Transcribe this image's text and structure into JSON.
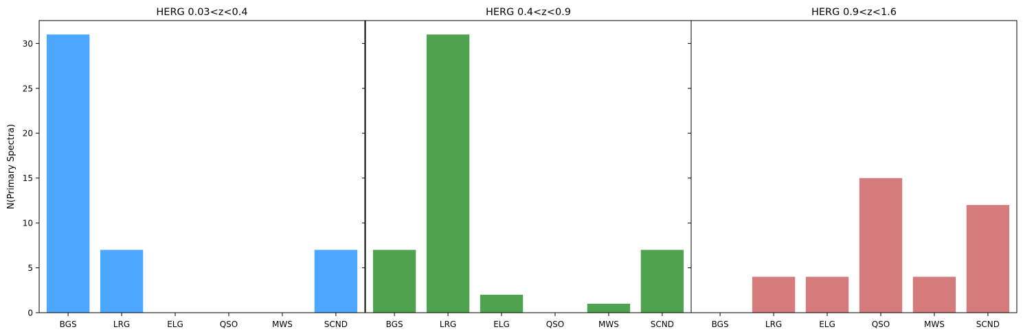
{
  "chart_data": {
    "type": "bar",
    "ylabel": "N(Primary Spectra)",
    "ylim": [
      0,
      32.55
    ],
    "yticks": [
      0,
      5,
      10,
      15,
      20,
      25,
      30
    ],
    "categories": [
      "BGS",
      "LRG",
      "ELG",
      "QSO",
      "MWS",
      "SCND"
    ],
    "panels": [
      {
        "title": "HERG 0.03<z<0.4",
        "color": "#4da6ff",
        "values": [
          31,
          7,
          0,
          0,
          0,
          7
        ]
      },
      {
        "title": "HERG 0.4<z<0.9",
        "color": "#4fa34f",
        "values": [
          7,
          31,
          2,
          0,
          1,
          7
        ]
      },
      {
        "title": "HERG 0.9<z<1.6",
        "color": "#d67b7b",
        "values": [
          0,
          4,
          4,
          15,
          4,
          12
        ]
      }
    ]
  }
}
